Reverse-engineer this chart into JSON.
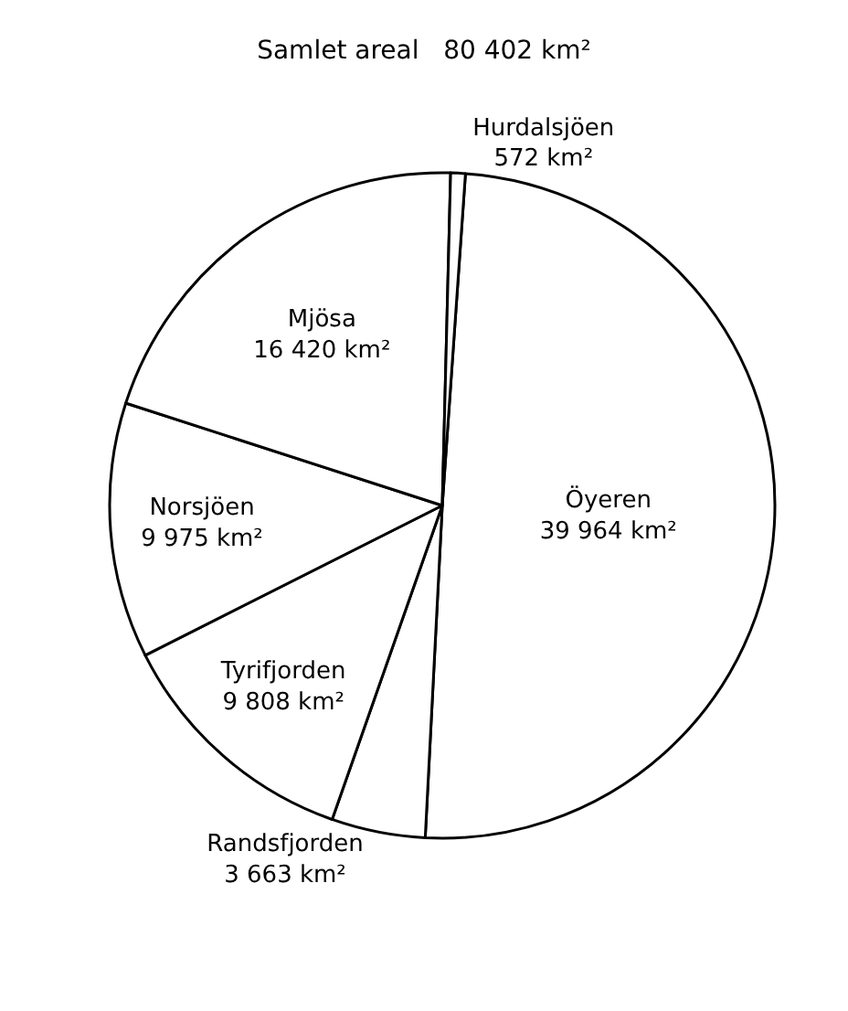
{
  "chart_data": {
    "type": "pie",
    "title": "Samlet areal   80 402 km²",
    "categories": [
      "Öyeren",
      "Randsfjorden",
      "Tyrifjorden",
      "Norsjöen",
      "Mjösa",
      "Hurdalsjöen"
    ],
    "values": [
      39964,
      3663,
      9808,
      9975,
      16420,
      572
    ],
    "value_labels": [
      "39 964 km²",
      "3 663 km²",
      "9 808 km²",
      "9 975 km²",
      "16 420 km²",
      "572 km²"
    ],
    "colors": [
      "#ffffff",
      "#ffffff",
      "#ffffff",
      "#ffffff",
      "#ffffff",
      "#ffffff"
    ],
    "legend": false
  }
}
